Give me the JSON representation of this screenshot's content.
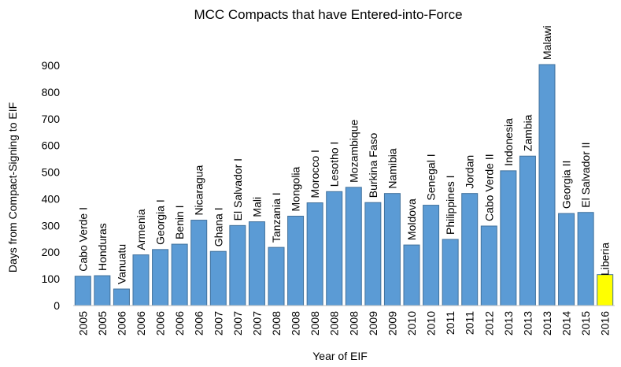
{
  "chart_data": {
    "type": "bar",
    "title": "MCC Compacts that have Entered-into-Force",
    "xlabel": "Year of EIF",
    "ylabel": "Days from Compact-Signing to EIF",
    "ylim": [
      0,
      900
    ],
    "yticks": [
      0,
      100,
      200,
      300,
      400,
      500,
      600,
      700,
      800,
      900
    ],
    "grid": false,
    "legend": "none",
    "colors": {
      "bar": "#5b9bd5",
      "bar_edge": "#41719c",
      "highlight": "#ffff00",
      "highlight_edge": "#bfa800"
    },
    "categories": [
      "2005",
      "2005",
      "2006",
      "2006",
      "2006",
      "2006",
      "2006",
      "2007",
      "2007",
      "2007",
      "2008",
      "2008",
      "2008",
      "2008",
      "2008",
      "2009",
      "2009",
      "2010",
      "2010",
      "2011",
      "2011",
      "2012",
      "2013",
      "2013",
      "2013",
      "2014",
      "2015",
      "2016"
    ],
    "labels": [
      "Cabo Verde I",
      "Honduras",
      "Vanuatu",
      "Armenia",
      "Georgia I",
      "Benin I",
      "Nicaragua",
      "Ghana I",
      "El Salvador I",
      "Mali",
      "Tanzania I",
      "Mongolia",
      "Morocco I",
      "Lesotho I",
      "Mozambique",
      "Burkina Faso",
      "Namibia",
      "Moldova",
      "Senegal I",
      "Philippines I",
      "Jordan",
      "Cabo Verde II",
      "Indonesia",
      "Zambia",
      "Malawi",
      "Georgia II",
      "El Salvador II",
      "Liberia"
    ],
    "values": [
      110,
      112,
      62,
      190,
      210,
      230,
      320,
      203,
      300,
      314,
      218,
      335,
      385,
      427,
      443,
      386,
      420,
      227,
      376,
      248,
      420,
      298,
      505,
      560,
      903,
      345,
      349,
      116
    ],
    "highlight_index": 27
  }
}
